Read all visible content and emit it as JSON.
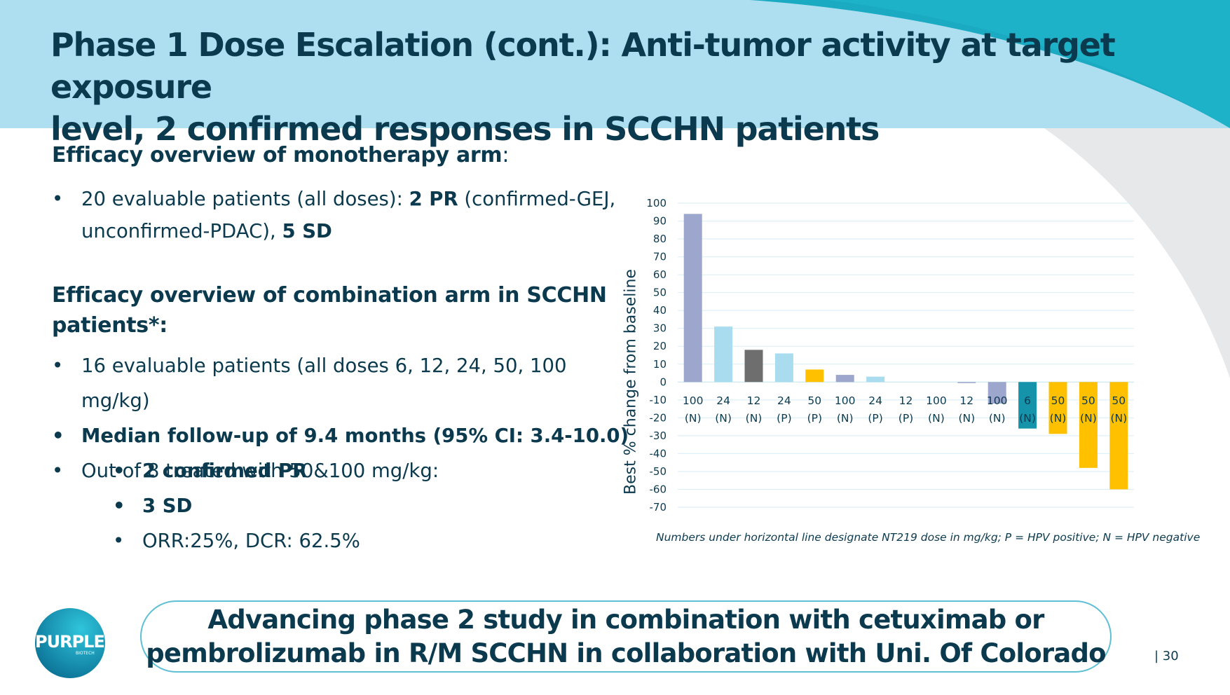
{
  "header": {
    "title_line1": "Phase 1 Dose Escalation (cont.): Anti-tumor activity at target exposure",
    "title_line2": "level, 2 confirmed responses in SCCHN patients"
  },
  "monotherapy": {
    "heading": "Efficacy overview of monotherapy arm",
    "heading_suffix": ":",
    "bullet1_part1": "20 evaluable patients (all doses):  ",
    "bullet1_bold1": "2 PR",
    "bullet1_part2": " (confirmed-GEJ,",
    "bullet1_part3": "unconfirmed-PDAC), ",
    "bullet1_bold2": "5 SD"
  },
  "combination": {
    "heading_line1": "Efficacy overview of combination arm in SCCHN",
    "heading_line2": "patients",
    "heading_suffix": "*:",
    "bullet1": "16 evaluable patients (all doses 6, 12, 24, 50, 100 mg/kg)",
    "bullet2": " Median follow-up of 9.4 months (95% CI: 3.4-10.0)",
    "bullet3": "Out of 8 treated with 50&100 mg/kg:",
    "sub1": "2 confirmed PR",
    "sub2": "3 SD",
    "sub3": "ORR:25%, DCR: 62.5%"
  },
  "chart_data": {
    "type": "bar",
    "ylabel": "Best % change from baseline",
    "ylim": [
      -70,
      100
    ],
    "yticks": [
      100,
      90,
      80,
      70,
      60,
      50,
      40,
      30,
      20,
      10,
      0,
      -10,
      -20,
      -30,
      -40,
      -50,
      -60,
      -70
    ],
    "grid": true,
    "categories": [
      {
        "dose": "100",
        "hpv": "(N)"
      },
      {
        "dose": "24",
        "hpv": "(N)"
      },
      {
        "dose": "12",
        "hpv": "(N)"
      },
      {
        "dose": "24",
        "hpv": "(P)"
      },
      {
        "dose": "50",
        "hpv": "(P)"
      },
      {
        "dose": "100",
        "hpv": "(N)"
      },
      {
        "dose": "24",
        "hpv": "(P)"
      },
      {
        "dose": "12",
        "hpv": "(P)"
      },
      {
        "dose": "100",
        "hpv": "(N)"
      },
      {
        "dose": "12",
        "hpv": "(N)"
      },
      {
        "dose": "100",
        "hpv": "(N)"
      },
      {
        "dose": "6",
        "hpv": "(N)"
      },
      {
        "dose": "50",
        "hpv": "(N)"
      },
      {
        "dose": "50",
        "hpv": "(N)"
      },
      {
        "dose": "50",
        "hpv": "(N)"
      }
    ],
    "values": [
      94,
      31,
      18,
      16,
      7,
      4,
      3,
      0,
      0,
      -0.5,
      -12,
      -26,
      -29,
      -48,
      -60
    ],
    "colors": [
      "#9da6cc",
      "#a9dcef",
      "#6e6e6e",
      "#a9dcef",
      "#ffc000",
      "#9da6cc",
      "#a9dcef",
      "#a9dcef",
      "#9da6cc",
      "#9da6cc",
      "#9da6cc",
      "#1493ab",
      "#ffc000",
      "#ffc000",
      "#ffc000"
    ],
    "footnote": "Numbers under horizontal line designate NT219 dose in mg/kg; P = HPV positive; N = HPV negative"
  },
  "cta": {
    "text": "Advancing phase 2 study in combination with cetuximab or\npembrolizumab in R/M SCCHN in collaboration with Uni. Of Colorado"
  },
  "footer": {
    "page_number": "| 30",
    "logo_text": "PURPLE",
    "logo_subtext": "BIOTECH"
  },
  "theme": {
    "header_bg": "#addff0",
    "accent_teal": "#1aaac2",
    "text_dark": "#0b3a4f"
  }
}
